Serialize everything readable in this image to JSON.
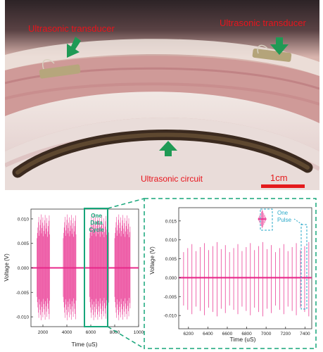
{
  "photo": {
    "labels": {
      "transducer_left": "Ultrasonic transducer",
      "transducer_right": "Ultrasonic transducer",
      "circuit": "Ultrasonic circuit",
      "scale_bar": "1cm"
    },
    "colors": {
      "label_red": "#e8141c",
      "arrow_green": "#1f9a55",
      "scale_red": "#e41a1c"
    }
  },
  "left_plot": {
    "xlabel": "Time (uS)",
    "ylabel": "Voltage (V)",
    "xticks": [
      "2000",
      "4000",
      "6000",
      "8000",
      "1000"
    ],
    "yticks": [
      "0.010",
      "0.005",
      "0.000",
      "-0.005",
      "-0.010"
    ],
    "annotation": [
      "One",
      "Data",
      "Cycle"
    ]
  },
  "right_plot": {
    "xlabel": "Time (uS)",
    "ylabel": "Voltage (V)",
    "xticks": [
      "6200",
      "6400",
      "6600",
      "6800",
      "7000",
      "7200",
      "7400"
    ],
    "yticks": [
      "0.015",
      "0.010",
      "0.005",
      "0.000",
      "-0.005",
      "-0.010"
    ],
    "annotation": [
      "One",
      "Pulse"
    ]
  },
  "colors": {
    "signal": "#e8288a",
    "highlight": "#17a67a",
    "pulse_box": "#2aa9c9"
  },
  "chart_data": [
    {
      "type": "line",
      "xlabel": "Time (uS)",
      "ylabel": "Voltage (V)",
      "xlim": [
        1000,
        10000
      ],
      "ylim": [
        -0.012,
        0.012
      ],
      "bursts_us": [
        [
          1500,
          2600
        ],
        [
          3700,
          4800
        ],
        [
          5900,
          7500
        ],
        [
          8000,
          9300
        ]
      ],
      "amplitude_V": 0.011
    },
    {
      "type": "line",
      "xlabel": "Time (uS)",
      "ylabel": "Voltage (V)",
      "xlim": [
        6100,
        7470
      ],
      "ylim": [
        -0.0135,
        0.0185
      ],
      "pulse_count": 31,
      "first_pulse_us": 6150,
      "last_pulse_us": 7440,
      "amplitude_V": 0.0105,
      "highlighted_pulse_us": 6960,
      "highlighted_amplitude_V": 0.0155
    }
  ]
}
